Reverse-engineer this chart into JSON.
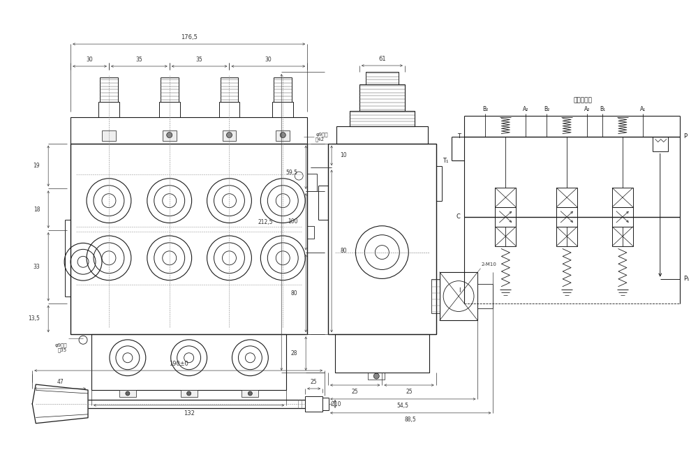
{
  "bg_color": "#ffffff",
  "line_color": "#1a1a1a",
  "dim_color": "#333333",
  "schematic_title": "液压系统图",
  "front_view": {
    "dim_176_5": "176,5",
    "dim_30a": "30",
    "dim_35a": "35",
    "dim_35b": "35",
    "dim_30b": "30",
    "dim_19": "19",
    "dim_18": "18",
    "dim_33": "33",
    "dim_13_5": "13,5",
    "dim_132": "132",
    "dim_80": "80",
    "dim_10": "10",
    "hole_label1": "φ9面孔",
    "hole_depth1": "深42",
    "hole_label2": "φ9面孔",
    "hole_depth2": "深35"
  },
  "side_view": {
    "dim_61": "61",
    "dim_59_5": "59,5",
    "dim_212_5": "212,5",
    "dim_100": "100",
    "dim_80": "80",
    "dim_28": "28",
    "dim_25_l": "25",
    "dim_25_r": "25",
    "dim_54_5": "54,5",
    "dim_88_5": "88,5",
    "dim_2m10": "2-M10"
  },
  "bottom_view": {
    "dim_190": "190±0",
    "dim_47": "47",
    "dim_25": "25",
    "dim_10": "Ø10"
  },
  "schematic": {
    "title": "液压系统图"
  }
}
